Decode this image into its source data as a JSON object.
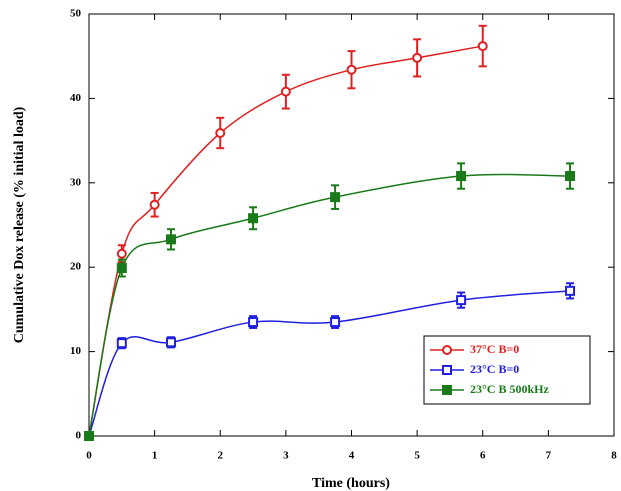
{
  "chart_data": {
    "type": "line",
    "x_label": "Time (hours)",
    "y_label": "Cumulative Dox release (% initial load)",
    "xlim": [
      0,
      8
    ],
    "ylim": [
      0,
      50
    ],
    "xticks": [
      0,
      1,
      2,
      3,
      4,
      5,
      6,
      7,
      8
    ],
    "yticks": [
      0,
      10,
      20,
      30,
      40,
      50
    ],
    "legend": "lower right",
    "series": [
      {
        "name": "37°C B=0",
        "color": "#e02020",
        "marker": "circle",
        "x": [
          0,
          0.5,
          1,
          2,
          3,
          4,
          5,
          6
        ],
        "values": [
          0,
          21.6,
          27.4,
          35.9,
          40.8,
          43.4,
          44.8,
          46.2
        ],
        "errors": [
          0,
          1.0,
          1.4,
          1.8,
          2.0,
          2.2,
          2.2,
          2.4
        ]
      },
      {
        "name": "23°C B=0",
        "color": "#2020e0",
        "marker": "square-open",
        "x": [
          0,
          0.5,
          1.25,
          2.5,
          3.75,
          5.67,
          7.33
        ],
        "values": [
          0,
          11.0,
          11.1,
          13.5,
          13.5,
          16.1,
          17.2
        ],
        "errors": [
          0,
          0.6,
          0.6,
          0.7,
          0.7,
          0.9,
          0.9
        ]
      },
      {
        "name": "23°C B 500kHz",
        "color": "#1a7a1a",
        "marker": "square",
        "x": [
          0,
          0.5,
          1.25,
          2.5,
          3.75,
          5.67,
          7.33
        ],
        "values": [
          0,
          19.9,
          23.3,
          25.8,
          28.3,
          30.8,
          30.8
        ],
        "errors": [
          0,
          1.0,
          1.2,
          1.3,
          1.4,
          1.5,
          1.5
        ]
      }
    ]
  }
}
